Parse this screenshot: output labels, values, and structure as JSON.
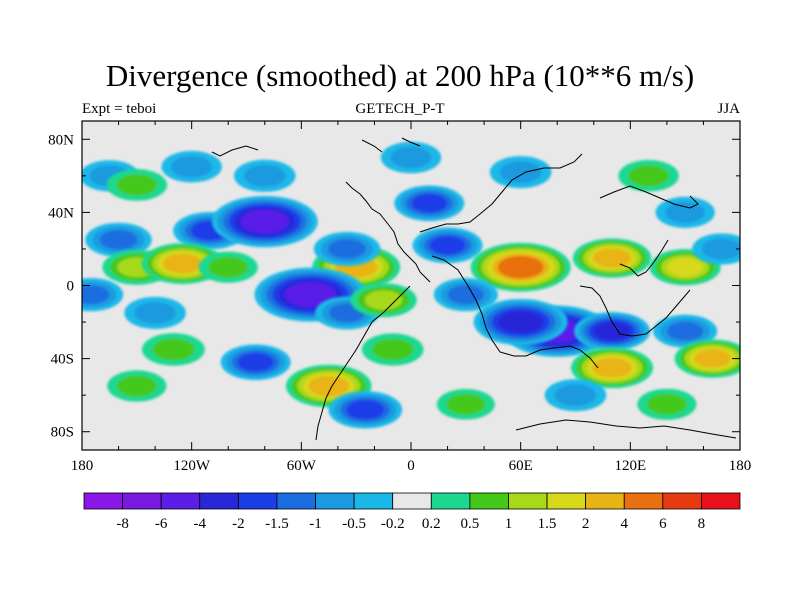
{
  "chart_data": {
    "type": "heatmap",
    "title": "Divergence (smoothed) at 200 hPa (10**6 m/s)",
    "subtitle_left": "Expt = teboi",
    "subtitle_center": "GETECH_P-T",
    "subtitle_right": "JJA",
    "x_ticks": [
      "180",
      "120W",
      "60W",
      "0",
      "60E",
      "120E",
      "180"
    ],
    "y_ticks": [
      "80N",
      "40N",
      "0",
      "40S",
      "80S"
    ],
    "x_tick_values": [
      -180,
      -120,
      -60,
      0,
      60,
      120,
      180
    ],
    "y_tick_values": [
      80,
      40,
      0,
      -40,
      -80
    ],
    "xlim": [
      -180,
      180
    ],
    "ylim": [
      -90,
      90
    ],
    "colorbar": {
      "labels": [
        "-8",
        "-6",
        "-4",
        "-2",
        "-1.5",
        "-1",
        "-0.5",
        "-0.2",
        "0.2",
        "0.5",
        "1",
        "1.5",
        "2",
        "4",
        "6",
        "8"
      ],
      "levels": [
        -8,
        -6,
        -4,
        -2,
        -1.5,
        -1,
        -0.5,
        -0.2,
        0.2,
        0.5,
        1,
        1.5,
        2,
        4,
        6,
        8
      ],
      "colors": [
        "#8a16e8",
        "#7a1ae0",
        "#5a1ee8",
        "#2828d8",
        "#1a3ee8",
        "#1a6ee0",
        "#1a9ae0",
        "#1ab8e8",
        "#e8e8e8",
        "#1ad890",
        "#44c81a",
        "#a8d81a",
        "#d8d81a",
        "#e8b414",
        "#e87010",
        "#e83a10",
        "#e8101a"
      ]
    },
    "fields": [
      {
        "lon": -165,
        "lat": 60,
        "value": -0.6
      },
      {
        "lon": -150,
        "lat": 55,
        "value": 0.7
      },
      {
        "lon": -120,
        "lat": 65,
        "value": -0.7
      },
      {
        "lon": -80,
        "lat": 60,
        "value": -0.8
      },
      {
        "lon": 0,
        "lat": 70,
        "value": -0.7
      },
      {
        "lon": 10,
        "lat": 45,
        "value": -1.5
      },
      {
        "lon": 60,
        "lat": 62,
        "value": -0.8
      },
      {
        "lon": 130,
        "lat": 60,
        "value": 0.7
      },
      {
        "lon": 150,
        "lat": 40,
        "value": -0.6
      },
      {
        "lon": -160,
        "lat": 25,
        "value": -1.2
      },
      {
        "lon": -110,
        "lat": 30,
        "value": -1.8
      },
      {
        "lon": -80,
        "lat": 35,
        "value": -4.5
      },
      {
        "lon": -150,
        "lat": 10,
        "value": 1.4
      },
      {
        "lon": -125,
        "lat": 12,
        "value": 2.5
      },
      {
        "lon": -100,
        "lat": 10,
        "value": 0.6
      },
      {
        "lon": -30,
        "lat": 10,
        "value": 3.0
      },
      {
        "lon": -35,
        "lat": 20,
        "value": -1.2
      },
      {
        "lon": 20,
        "lat": 22,
        "value": -1.5
      },
      {
        "lon": 60,
        "lat": 10,
        "value": 4.0
      },
      {
        "lon": 110,
        "lat": 15,
        "value": 2.2
      },
      {
        "lon": 150,
        "lat": 10,
        "value": 1.6
      },
      {
        "lon": 170,
        "lat": 20,
        "value": -0.6
      },
      {
        "lon": -175,
        "lat": -5,
        "value": -1.0
      },
      {
        "lon": -140,
        "lat": -15,
        "value": -0.8
      },
      {
        "lon": -55,
        "lat": -5,
        "value": -5.0
      },
      {
        "lon": -35,
        "lat": -15,
        "value": -1.0
      },
      {
        "lon": -15,
        "lat": -8,
        "value": 1.2
      },
      {
        "lon": 30,
        "lat": -5,
        "value": -1.0
      },
      {
        "lon": 80,
        "lat": -25,
        "value": -4.5
      },
      {
        "lon": 60,
        "lat": -20,
        "value": -3.5
      },
      {
        "lon": 110,
        "lat": -25,
        "value": -2.0
      },
      {
        "lon": 150,
        "lat": -25,
        "value": -1.0
      },
      {
        "lon": -130,
        "lat": -35,
        "value": 0.9
      },
      {
        "lon": -85,
        "lat": -42,
        "value": -1.5
      },
      {
        "lon": -10,
        "lat": -35,
        "value": 0.8
      },
      {
        "lon": 110,
        "lat": -45,
        "value": 2.5
      },
      {
        "lon": 165,
        "lat": -40,
        "value": 2.0
      },
      {
        "lon": -150,
        "lat": -55,
        "value": 0.6
      },
      {
        "lon": -45,
        "lat": -55,
        "value": 2.8
      },
      {
        "lon": -25,
        "lat": -68,
        "value": -1.8
      },
      {
        "lon": 30,
        "lat": -65,
        "value": 0.5
      },
      {
        "lon": 90,
        "lat": -60,
        "value": -0.8
      },
      {
        "lon": 140,
        "lat": -65,
        "value": 0.6
      }
    ]
  }
}
